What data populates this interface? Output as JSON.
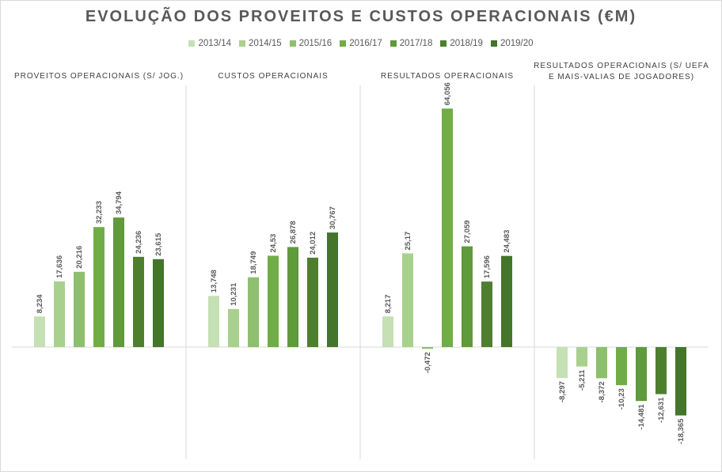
{
  "title": "EVOLUÇÃO DOS PROVEITOS E CUSTOS OPERACIONAIS  (€M)",
  "legend": [
    {
      "label": "2013/14",
      "color": "#c5e0b4"
    },
    {
      "label": "2014/15",
      "color": "#a9d18e"
    },
    {
      "label": "2015/16",
      "color": "#8dbf6e"
    },
    {
      "label": "2016/17",
      "color": "#70ad47"
    },
    {
      "label": "2017/18",
      "color": "#5f9a3b"
    },
    {
      "label": "2018/19",
      "color": "#4e7f2f"
    },
    {
      "label": "2019/20",
      "color": "#43752a"
    }
  ],
  "chart_data": [
    {
      "type": "bar",
      "title": "PROVEITOS OPERACIONAIS (S/ JOG.)",
      "categories": [
        "2013/14",
        "2014/15",
        "2015/16",
        "2016/17",
        "2017/18",
        "2018/19",
        "2019/20"
      ],
      "values": [
        8.234,
        17.636,
        20.216,
        32.233,
        34.794,
        24.236,
        23.615
      ],
      "value_labels": [
        "8,234",
        "17,636",
        "20,216",
        "32,233",
        "34,794",
        "24,236",
        "23,615"
      ]
    },
    {
      "type": "bar",
      "title": "CUSTOS OPERACIONAIS",
      "categories": [
        "2013/14",
        "2014/15",
        "2015/16",
        "2016/17",
        "2017/18",
        "2018/19",
        "2019/20"
      ],
      "values": [
        13.748,
        10.231,
        18.749,
        24.53,
        26.878,
        24.012,
        30.767
      ],
      "value_labels": [
        "13,748",
        "10,231",
        "18,749",
        "24,53",
        "26,878",
        "24,012",
        "30,767"
      ]
    },
    {
      "type": "bar",
      "title": "RESULTADOS OPERACIONAIS",
      "categories": [
        "2013/14",
        "2014/15",
        "2015/16",
        "2016/17",
        "2017/18",
        "2018/19",
        "2019/20"
      ],
      "values": [
        8.217,
        25.17,
        -0.472,
        64.056,
        27.059,
        17.596,
        24.483
      ],
      "value_labels": [
        "8,217",
        "25,17",
        "-0,472",
        "64,056",
        "27,059",
        "17,596",
        "24,483"
      ]
    },
    {
      "type": "bar",
      "title": [
        "RESULTADOS OPERACIONAIS (S/ UEFA",
        "E MAIS-VALIAS DE JOGADORES)"
      ],
      "categories": [
        "2013/14",
        "2014/15",
        "2015/16",
        "2016/17",
        "2017/18",
        "2018/19",
        "2019/20"
      ],
      "values": [
        -8.297,
        -5.211,
        -8.372,
        -10.23,
        -14.481,
        -12.631,
        -18.365
      ],
      "value_labels": [
        "-8,297",
        "-5,211",
        "-8,372",
        "-10,23",
        "-14,481",
        "-12,631",
        "-18,365"
      ]
    }
  ]
}
